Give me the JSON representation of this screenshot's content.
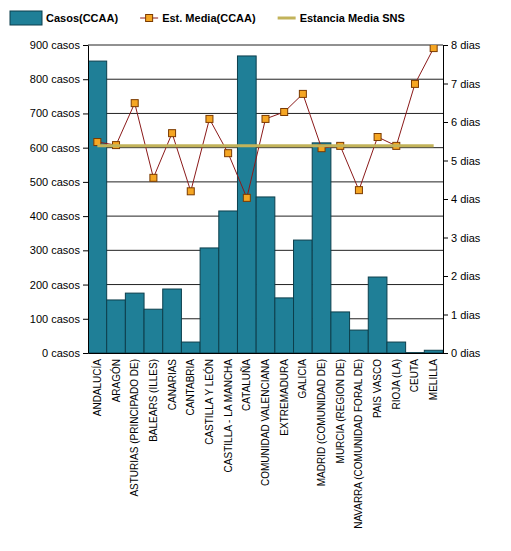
{
  "chart_data": {
    "type": "bar",
    "categories": [
      "ANDALUCÍA",
      "ARAGÓN",
      "ASTURIAS (PRINCIPADO DE)",
      "BALEARS (ILLES)",
      "CANARIAS",
      "CANTABRIA",
      "CASTILLA Y LEÓN",
      "CASTILLA - LA MANCHA",
      "CATALUÑA",
      "COMUNIDAD VALENCIANA",
      "EXTREMADURA",
      "GALICIA",
      "MADRID (COMUNIDAD DE)",
      "MURCIA (REGION DE)",
      "NAVARRA (COMUNIDAD FORAL DE)",
      "PAIS VASCO",
      "RIOJA (LA)",
      "CEUTA",
      "MELILLA"
    ],
    "series": [
      {
        "name": "Casos(CCAA)",
        "type": "bar",
        "color": "#1f7f97",
        "values": [
          853,
          155,
          175,
          128,
          187,
          32,
          307,
          415,
          868,
          456,
          161,
          330,
          614,
          120,
          67,
          222,
          32,
          1,
          8
        ]
      },
      {
        "name": "Est. Media(CCAA)",
        "type": "line",
        "axis": "y2",
        "color": "#8b1a1a",
        "marker": "square",
        "values": [
          5.48,
          5.4,
          6.49,
          4.55,
          5.71,
          4.2,
          6.08,
          5.19,
          4.03,
          6.08,
          6.26,
          6.73,
          5.32,
          5.38,
          4.23,
          5.61,
          5.38,
          6.99,
          7.92
        ]
      },
      {
        "name": "Estancia Media SNS",
        "type": "line",
        "axis": "y2",
        "color": "#c2b35a",
        "values": [
          5.38,
          5.38,
          5.38,
          5.38,
          5.38,
          5.38,
          5.38,
          5.38,
          5.38,
          5.38,
          5.38,
          5.38,
          5.38,
          5.38,
          5.38,
          5.38,
          5.38,
          5.38,
          5.38
        ]
      }
    ],
    "ylim": [
      0,
      900
    ],
    "yticks": [
      {
        "value": 0,
        "label": "0 casos"
      },
      {
        "value": 100,
        "label": "100 casos"
      },
      {
        "value": 200,
        "label": "200 casos"
      },
      {
        "value": 300,
        "label": "300 casos"
      },
      {
        "value": 400,
        "label": "400 casos"
      },
      {
        "value": 500,
        "label": "500 casos"
      },
      {
        "value": 600,
        "label": "600 casos"
      },
      {
        "value": 700,
        "label": "700 casos"
      },
      {
        "value": 800,
        "label": "800 casos"
      },
      {
        "value": 900,
        "label": "900 casos"
      }
    ],
    "y2lim": [
      0,
      8
    ],
    "y2ticks": [
      {
        "value": 0,
        "label": "0 dias"
      },
      {
        "value": 1,
        "label": "1 dias"
      },
      {
        "value": 2,
        "label": "2 dias"
      },
      {
        "value": 3,
        "label": "3 dias"
      },
      {
        "value": 4,
        "label": "4 dias"
      },
      {
        "value": 5,
        "label": "5 dias"
      },
      {
        "value": 6,
        "label": "6 dias"
      },
      {
        "value": 7,
        "label": "7 dias"
      },
      {
        "value": 8,
        "label": "8 dias"
      }
    ],
    "grid": true,
    "legend": "top"
  }
}
